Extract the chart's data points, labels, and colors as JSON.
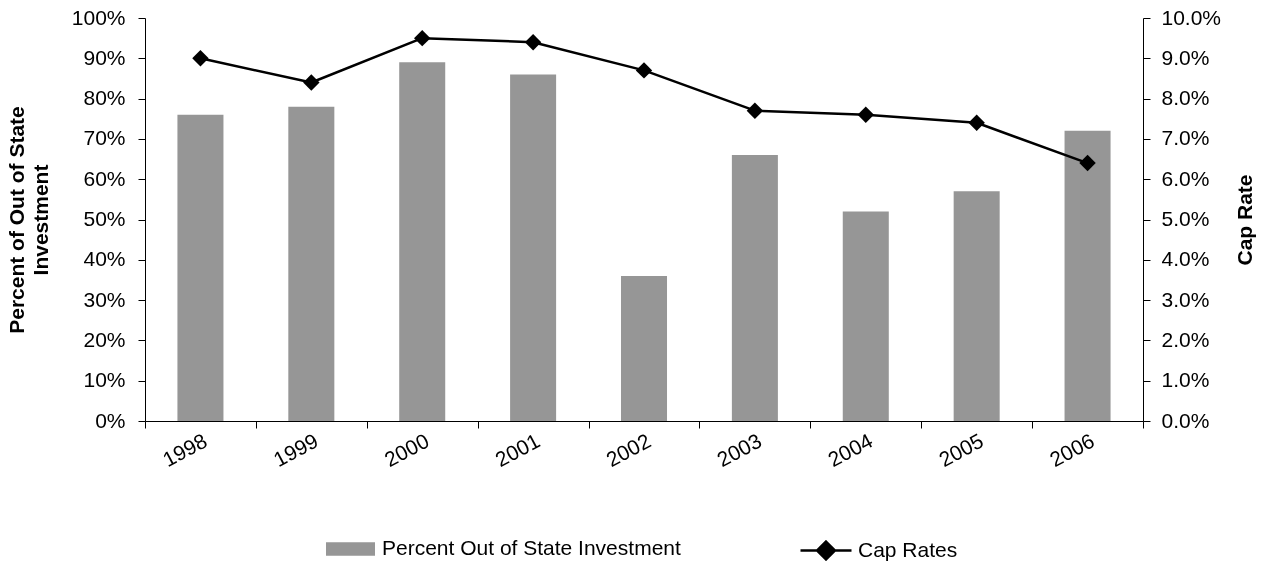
{
  "chart_data": {
    "type": "bar",
    "categories": [
      "1998",
      "1999",
      "2000",
      "2001",
      "2002",
      "2003",
      "2004",
      "2005",
      "2006"
    ],
    "series": [
      {
        "name": "Percent Out of State Investment",
        "color": "#969696",
        "values": [
          76,
          78,
          89,
          86,
          36,
          66,
          52,
          57,
          72
        ]
      },
      {
        "name": "Cap Rates",
        "type": "line",
        "axis": "y2",
        "color": "#000000",
        "values": [
          9.0,
          8.4,
          9.5,
          9.4,
          8.7,
          7.7,
          7.6,
          7.4,
          6.4
        ]
      }
    ],
    "ylabel": "Percent of Out of State Investment",
    "y2label": "Cap Rate",
    "ylim": [
      0,
      100
    ],
    "yticks": [
      {
        "value": 0,
        "label": "0%"
      },
      {
        "value": 10,
        "label": "10%"
      },
      {
        "value": 20,
        "label": "20%"
      },
      {
        "value": 30,
        "label": "30%"
      },
      {
        "value": 40,
        "label": "40%"
      },
      {
        "value": 50,
        "label": "50%"
      },
      {
        "value": 60,
        "label": "60%"
      },
      {
        "value": 70,
        "label": "70%"
      },
      {
        "value": 80,
        "label": "80%"
      },
      {
        "value": 90,
        "label": "90%"
      },
      {
        "value": 100,
        "label": "100%"
      }
    ],
    "y2lim": [
      0,
      10
    ],
    "y2ticks": [
      {
        "value": 0,
        "label": "0.0%"
      },
      {
        "value": 1,
        "label": "1.0%"
      },
      {
        "value": 2,
        "label": "2.0%"
      },
      {
        "value": 3,
        "label": "3.0%"
      },
      {
        "value": 4,
        "label": "4.0%"
      },
      {
        "value": 5,
        "label": "5.0%"
      },
      {
        "value": 6,
        "label": "6.0%"
      },
      {
        "value": 7,
        "label": "7.0%"
      },
      {
        "value": 8,
        "label": "8.0%"
      },
      {
        "value": 9,
        "label": "9.0%"
      },
      {
        "value": 10,
        "label": "10.0%"
      }
    ],
    "marker": "diamond",
    "legend": "bottom",
    "grid": false
  }
}
